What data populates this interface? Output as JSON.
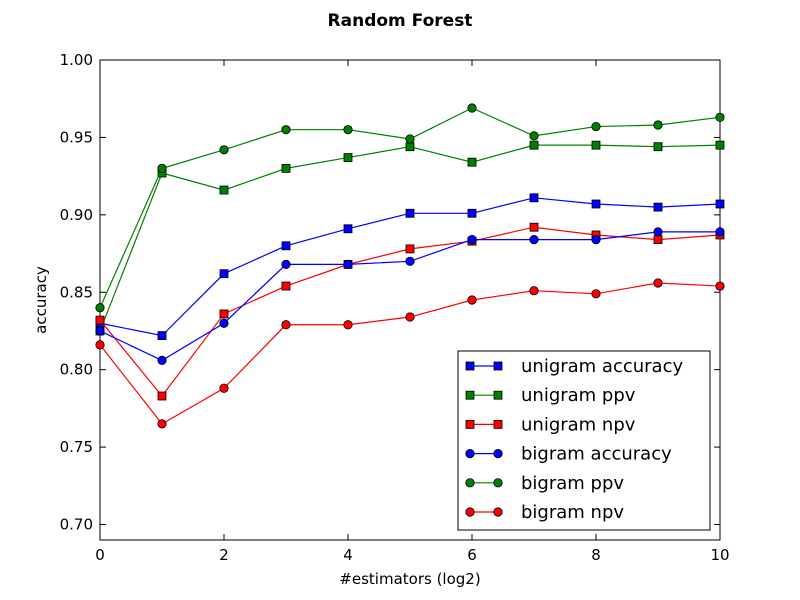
{
  "chart_data": {
    "type": "line",
    "title": "Random Forest",
    "xlabel": "#estimators (log2)",
    "ylabel": "accuracy",
    "xlim": [
      0,
      10
    ],
    "ylim": [
      0.69,
      1.0
    ],
    "xticks": [
      "0",
      "2",
      "4",
      "6",
      "8",
      "10"
    ],
    "xtick_values": [
      0,
      2,
      4,
      6,
      8,
      10
    ],
    "yticks": [
      "0.70",
      "0.75",
      "0.80",
      "0.85",
      "0.90",
      "0.95",
      "1.00"
    ],
    "ytick_values": [
      0.7,
      0.75,
      0.8,
      0.85,
      0.9,
      0.95,
      1.0
    ],
    "grid": false,
    "legend_position": "lower-right",
    "x": [
      0,
      1,
      2,
      3,
      4,
      5,
      6,
      7,
      8,
      9,
      10
    ],
    "series": [
      {
        "name": "unigram accuracy",
        "color": "#0000ff",
        "marker": "square",
        "values": [
          0.83,
          0.822,
          0.862,
          0.88,
          0.891,
          0.901,
          0.901,
          0.911,
          0.907,
          0.905,
          0.907
        ]
      },
      {
        "name": "unigram ppv",
        "color": "#008000",
        "marker": "square",
        "values": [
          0.825,
          0.927,
          0.916,
          0.93,
          0.937,
          0.944,
          0.934,
          0.945,
          0.945,
          0.944,
          0.945
        ]
      },
      {
        "name": "unigram npv",
        "color": "#ff0000",
        "marker": "square",
        "values": [
          0.832,
          0.783,
          0.836,
          0.854,
          0.868,
          0.878,
          0.883,
          0.892,
          0.887,
          0.884,
          0.887
        ]
      },
      {
        "name": "bigram accuracy",
        "color": "#0000ff",
        "marker": "circle",
        "values": [
          0.825,
          0.806,
          0.83,
          0.868,
          0.868,
          0.87,
          0.884,
          0.884,
          0.884,
          0.889,
          0.889
        ]
      },
      {
        "name": "bigram ppv",
        "color": "#008000",
        "marker": "circle",
        "values": [
          0.84,
          0.93,
          0.942,
          0.955,
          0.955,
          0.949,
          0.969,
          0.951,
          0.957,
          0.958,
          0.963
        ]
      },
      {
        "name": "bigram npv",
        "color": "#ff0000",
        "marker": "circle",
        "values": [
          0.816,
          0.765,
          0.788,
          0.829,
          0.829,
          0.834,
          0.845,
          0.851,
          0.849,
          0.856,
          0.854
        ]
      }
    ]
  }
}
